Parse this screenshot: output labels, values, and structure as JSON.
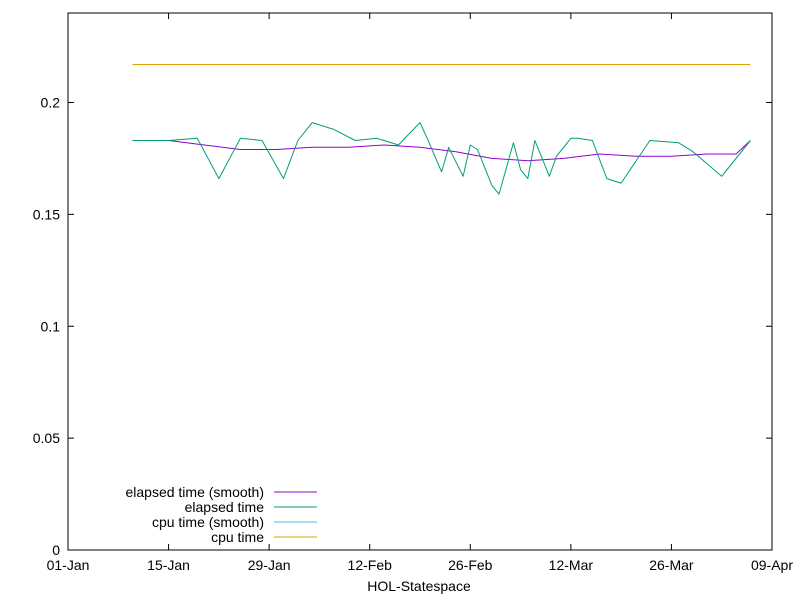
{
  "chart_data": {
    "type": "line",
    "title": "",
    "xlabel": "HOL-Statespace",
    "ylabel": "",
    "xlim": [
      "2021-01-01",
      "2021-04-09"
    ],
    "ylim": [
      0,
      0.24
    ],
    "x_ticks": [
      "01-Jan",
      "15-Jan",
      "29-Jan",
      "12-Feb",
      "26-Feb",
      "12-Mar",
      "26-Mar",
      "09-Apr"
    ],
    "y_ticks": [
      "0",
      "0.05",
      "0.1",
      "0.15",
      "0.2"
    ],
    "grid": false,
    "legend_position": "bottom-left",
    "series": [
      {
        "name": "elapsed time (smooth)",
        "color": "#9400d3",
        "x": [
          "2021-01-10",
          "2021-01-15",
          "2021-01-20",
          "2021-01-25",
          "2021-01-30",
          "2021-02-04",
          "2021-02-09",
          "2021-02-14",
          "2021-02-19",
          "2021-02-24",
          "2021-03-01",
          "2021-03-06",
          "2021-03-11",
          "2021-03-16",
          "2021-03-21",
          "2021-03-26",
          "2021-03-31",
          "2021-04-04",
          "2021-04-06"
        ],
        "values": [
          0.183,
          0.183,
          0.181,
          0.179,
          0.179,
          0.18,
          0.18,
          0.181,
          0.18,
          0.178,
          0.175,
          0.174,
          0.175,
          0.177,
          0.176,
          0.176,
          0.177,
          0.177,
          0.183
        ]
      },
      {
        "name": "elapsed time",
        "color": "#009e73",
        "x": [
          "2021-01-10",
          "2021-01-15",
          "2021-01-19",
          "2021-01-22",
          "2021-01-25",
          "2021-01-28",
          "2021-01-31",
          "2021-02-02",
          "2021-02-04",
          "2021-02-07",
          "2021-02-10",
          "2021-02-13",
          "2021-02-16",
          "2021-02-19",
          "2021-02-20",
          "2021-02-22",
          "2021-02-23",
          "2021-02-25",
          "2021-02-26",
          "2021-02-27",
          "2021-03-01",
          "2021-03-02",
          "2021-03-04",
          "2021-03-05",
          "2021-03-06",
          "2021-03-07",
          "2021-03-09",
          "2021-03-10",
          "2021-03-12",
          "2021-03-13",
          "2021-03-15",
          "2021-03-17",
          "2021-03-19",
          "2021-03-23",
          "2021-03-27",
          "2021-03-29",
          "2021-04-02",
          "2021-04-06"
        ],
        "values": [
          0.183,
          0.183,
          0.184,
          0.166,
          0.184,
          0.183,
          0.166,
          0.183,
          0.191,
          0.188,
          0.183,
          0.184,
          0.181,
          0.191,
          0.184,
          0.169,
          0.18,
          0.167,
          0.181,
          0.179,
          0.163,
          0.159,
          0.182,
          0.17,
          0.166,
          0.183,
          0.167,
          0.176,
          0.184,
          0.184,
          0.183,
          0.166,
          0.164,
          0.183,
          0.182,
          0.178,
          0.167,
          0.183
        ]
      },
      {
        "name": "cpu time (smooth)",
        "color": "#56b4e9",
        "x": [
          "2021-01-10",
          "2021-04-06"
        ],
        "values": [
          0.217,
          0.217
        ]
      },
      {
        "name": "cpu time",
        "color": "#e69f00",
        "x": [
          "2021-01-10",
          "2021-04-06"
        ],
        "values": [
          0.217,
          0.217
        ]
      }
    ]
  }
}
